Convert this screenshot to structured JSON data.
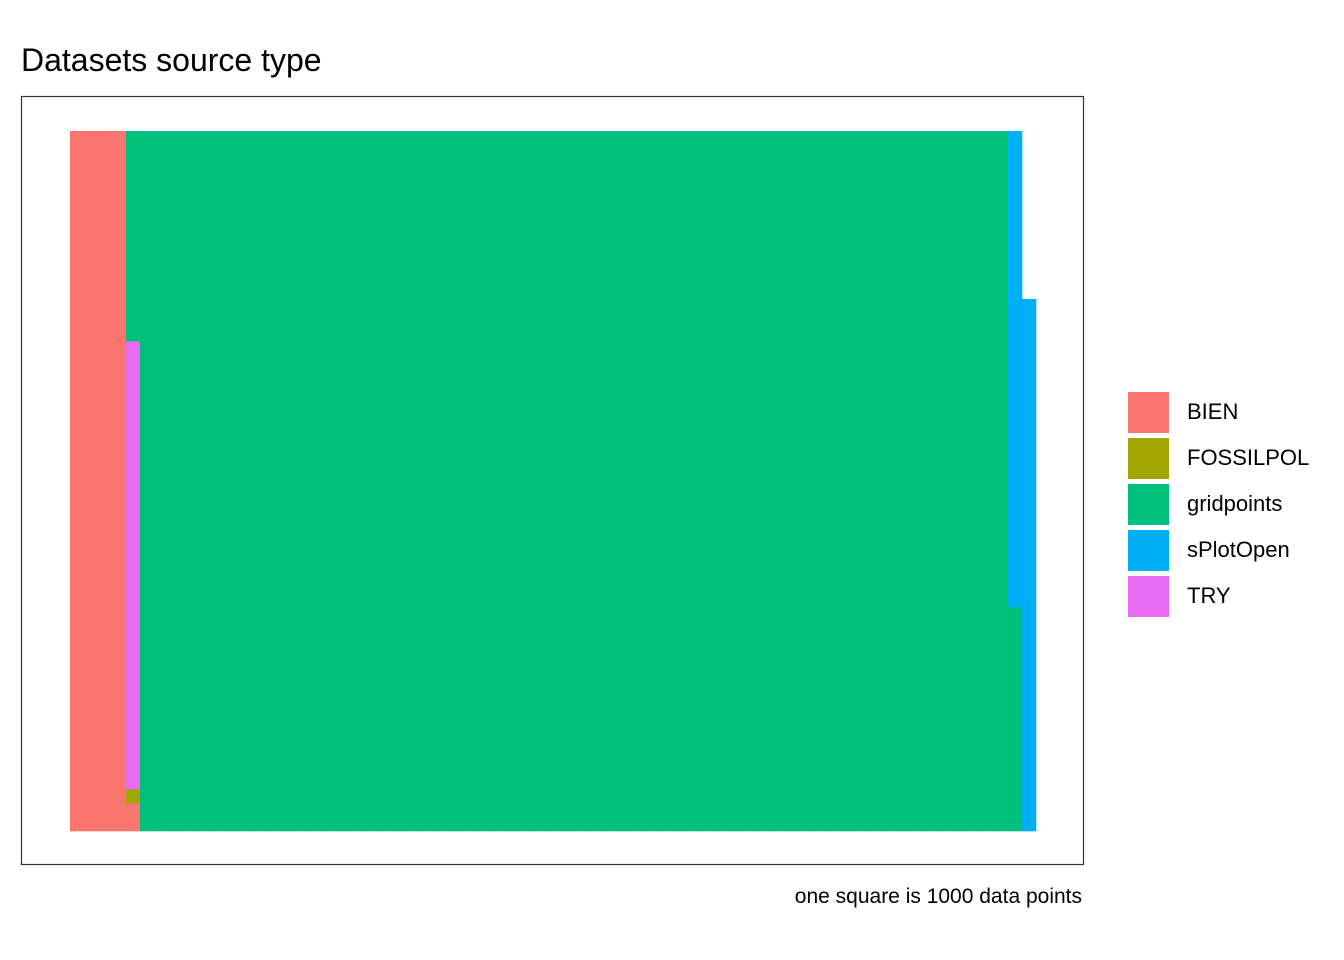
{
  "chart_data": {
    "type": "waffle",
    "title": "Datasets source type",
    "caption": "one square is 1000 data points",
    "grid": {
      "rows": 50,
      "columns": 69,
      "fill_order": "column-wise, bottom to top"
    },
    "series": [
      {
        "name": "BIEN",
        "color": "#F8766D",
        "squares": 202
      },
      {
        "name": "FOSSILPOL",
        "color": "#A3A500",
        "squares": 1
      },
      {
        "name": "TRY",
        "color": "#E76BF3",
        "squares": 32
      },
      {
        "name": "gridpoints",
        "color": "#00BF7D",
        "squares": 3131
      },
      {
        "name": "sPlotOpen",
        "color": "#00B0F6",
        "squares": 72
      }
    ],
    "legend": {
      "position": "right",
      "entries": [
        "BIEN",
        "FOSSILPOL",
        "gridpoints",
        "sPlotOpen",
        "TRY"
      ]
    }
  }
}
